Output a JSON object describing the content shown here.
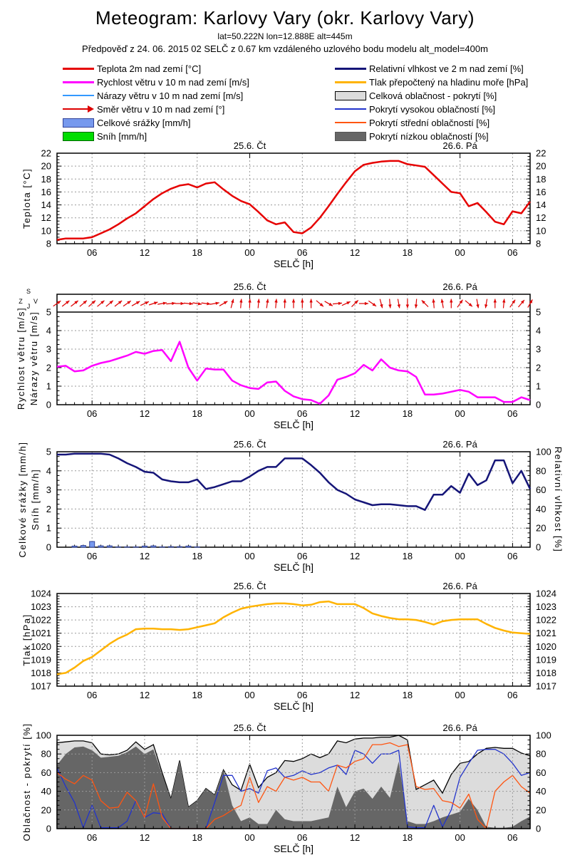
{
  "header": {
    "title": "Meteogram: Karlovy Vary (okr. Karlovy Vary)",
    "subtitle1": "lat=50.222N lon=12.888E alt=445m",
    "subtitle2": "Předpověď z 24. 06. 2015 02 SELČ z 0.67 km vzdáleného uzlového bodu modelu alt_model=400m"
  },
  "legend": {
    "left": [
      {
        "label": "Teplota 2m nad zemí [°C]",
        "type": "line",
        "color": "#e60000",
        "thick": true
      },
      {
        "label": "Rychlost větru v 10 m nad zemí [m/s]",
        "type": "line",
        "color": "#ff00ff",
        "thick": true
      },
      {
        "label": "Nárazy větru v 10 m nad zemí [m/s]",
        "type": "line",
        "color": "#3399ff",
        "thick": false
      },
      {
        "label": "Směr větru v 10 m nad zemí [°]",
        "type": "arrow",
        "color": "#dd0000"
      },
      {
        "label": "Celkové srážky [mm/h]",
        "type": "box",
        "color": "#7799ee",
        "border": "#334499"
      },
      {
        "label": "Sníh [mm/h]",
        "type": "box",
        "color": "#00dd00",
        "border": "#006600"
      }
    ],
    "right": [
      {
        "label": "Relativní vlhkost ve 2 m nad zemí [%]",
        "type": "line",
        "color": "#151578",
        "thick": true
      },
      {
        "label": "Tlak přepočtený na hladinu moře [hPa]",
        "type": "line",
        "color": "#ffb300",
        "thick": true
      },
      {
        "label": "Celková oblačnost - pokrytí [%]",
        "type": "box",
        "color": "#dcdcdc",
        "border": "#000000"
      },
      {
        "label": "Pokrytí vysokou oblačností [%]",
        "type": "line",
        "color": "#2233cc",
        "thick": false
      },
      {
        "label": "Pokrytí střední oblačností [%]",
        "type": "line",
        "color": "#ff5511",
        "thick": false
      },
      {
        "label": "Pokrytí nízkou oblačností [%]",
        "type": "box",
        "color": "#666666",
        "border": "#555555"
      }
    ]
  },
  "axis": {
    "x_label": "SELČ [h]",
    "start_hour": 2,
    "end_hour": 56,
    "x_ticks": [
      {
        "hour": 6,
        "label": "06"
      },
      {
        "hour": 12,
        "label": "12"
      },
      {
        "hour": 18,
        "label": "18"
      },
      {
        "hour": 24,
        "label": "00"
      },
      {
        "hour": 30,
        "label": "06"
      },
      {
        "hour": 36,
        "label": "12"
      },
      {
        "hour": 42,
        "label": "18"
      },
      {
        "hour": 48,
        "label": "00"
      },
      {
        "hour": 54,
        "label": "06"
      }
    ],
    "date_labels": [
      {
        "hour": 24,
        "text": "25.6. Čt"
      },
      {
        "hour": 48,
        "text": "26.6. Pá"
      }
    ]
  },
  "chart_data": [
    {
      "id": "teplota",
      "type": "line",
      "ylabel": "Teplota [°C]",
      "ylim": [
        8,
        22
      ],
      "ytick_step": 2,
      "series": [
        {
          "name": "teplota-2m",
          "color": "#e60000",
          "width": 2.5,
          "values": [
            8.6,
            8.8,
            8.8,
            8.8,
            9.0,
            9.6,
            10.2,
            11.0,
            11.9,
            12.7,
            13.8,
            14.9,
            15.8,
            16.5,
            17.0,
            17.2,
            16.7,
            17.3,
            17.5,
            16.4,
            15.4,
            14.6,
            14.1,
            12.9,
            11.6,
            11.0,
            11.3,
            9.8,
            9.6,
            10.5,
            12.0,
            13.8,
            15.7,
            17.5,
            19.2,
            20.2,
            20.5,
            20.7,
            20.8,
            20.8,
            20.3,
            20.1,
            19.9,
            18.6,
            17.3,
            16.0,
            15.8,
            13.8,
            14.3,
            12.9,
            11.4,
            11.0,
            13.0,
            12.7,
            14.5
          ]
        }
      ]
    },
    {
      "id": "vitr",
      "type": "line-arrows",
      "ylabels": [
        "Rychlost větru [m/s]",
        "Nárazy větru [m/s]"
      ],
      "ylim": [
        0,
        5
      ],
      "ytick_step": 1,
      "compass": {
        "top": "S",
        "bottom": "J",
        "left": "Z",
        "right": "V"
      },
      "arrow_color": "#dd0000",
      "wind_direction_deg": [
        35,
        38,
        38,
        40,
        42,
        40,
        40,
        38,
        35,
        30,
        25,
        18,
        10,
        5,
        0,
        -5,
        -10,
        -8,
        10,
        30,
        75,
        85,
        88,
        85,
        82,
        85,
        88,
        90,
        90,
        90,
        -40,
        -30,
        5,
        25,
        45,
        0,
        -35,
        -75,
        -85,
        -80,
        -90,
        -95,
        135,
        95,
        100,
        90,
        55,
        -40,
        -80,
        -100,
        90,
        85,
        55,
        50,
        60
      ],
      "series": [
        {
          "name": "rychlost-vetru",
          "color": "#ff00ff",
          "width": 2.5,
          "values": [
            2.05,
            2.1,
            1.8,
            1.85,
            2.1,
            2.25,
            2.35,
            2.5,
            2.65,
            2.85,
            2.75,
            2.9,
            2.95,
            2.35,
            3.4,
            2.0,
            1.3,
            1.95,
            1.9,
            1.9,
            1.3,
            1.05,
            0.9,
            0.85,
            1.2,
            1.25,
            0.75,
            0.45,
            0.3,
            0.25,
            0.05,
            0.5,
            1.35,
            1.5,
            1.7,
            2.15,
            1.85,
            2.45,
            2.0,
            1.85,
            1.8,
            1.5,
            0.55,
            0.55,
            0.6,
            0.7,
            0.8,
            0.7,
            0.4,
            0.4,
            0.4,
            0.15,
            0.15,
            0.4,
            0.25
          ]
        }
      ]
    },
    {
      "id": "srazky",
      "type": "bars-line",
      "ylabels": [
        "Celkové srážky [mm/h]",
        "Sníh [mm/h]"
      ],
      "ylim": [
        0,
        5
      ],
      "ytick_step": 1,
      "y2label": "Relativní vlhkost [%]",
      "y2lim": [
        0,
        100
      ],
      "y2tick_step": 20,
      "bars": {
        "name": "celkove-srazky",
        "color": "#7799ee",
        "border": "#334499",
        "values": [
          0,
          0,
          0.06,
          0.09,
          0.3,
          0.07,
          0.07,
          0.02,
          0.02,
          0.02,
          0.06,
          0.07,
          0.02,
          0.03,
          0.03,
          0.06,
          0.02,
          0,
          0,
          0,
          0,
          0,
          0,
          0,
          0,
          0,
          0,
          0,
          0,
          0,
          0,
          0,
          0,
          0,
          0,
          0,
          0,
          0,
          0,
          0,
          0,
          0,
          0,
          0,
          0,
          0,
          0,
          0,
          0,
          0,
          0,
          0,
          0,
          0,
          0
        ]
      },
      "series": [
        {
          "name": "relativni-vlhkost",
          "color": "#151578",
          "width": 2.5,
          "axis": "y2",
          "values": [
            97,
            97,
            98,
            98,
            98,
            98,
            97,
            93,
            88,
            84,
            79,
            78,
            71,
            69,
            68,
            68,
            71,
            61,
            63,
            66,
            69,
            69,
            74,
            80,
            84,
            84,
            93,
            93,
            93,
            86,
            78,
            68,
            60,
            56,
            50,
            47,
            44,
            45,
            45,
            44,
            43,
            43,
            39,
            55,
            55,
            64,
            57,
            77,
            65,
            70,
            91,
            91,
            67,
            80,
            61
          ]
        }
      ]
    },
    {
      "id": "tlak",
      "type": "line",
      "ylabel": "Tlak [hPa]",
      "ylim": [
        1017,
        1024
      ],
      "ytick_step": 1,
      "series": [
        {
          "name": "tlak-hladina-more",
          "color": "#ffb300",
          "width": 2.5,
          "values": [
            1017.9,
            1018.0,
            1018.4,
            1018.9,
            1019.2,
            1019.7,
            1020.2,
            1020.6,
            1020.9,
            1021.3,
            1021.35,
            1021.35,
            1021.3,
            1021.3,
            1021.25,
            1021.3,
            1021.45,
            1021.6,
            1021.75,
            1022.2,
            1022.55,
            1022.85,
            1023.0,
            1023.1,
            1023.2,
            1023.25,
            1023.25,
            1023.2,
            1023.1,
            1023.15,
            1023.35,
            1023.4,
            1023.2,
            1023.2,
            1023.2,
            1022.9,
            1022.5,
            1022.3,
            1022.15,
            1022.05,
            1022.05,
            1022.0,
            1021.85,
            1021.65,
            1021.9,
            1022.0,
            1022.05,
            1022.05,
            1022.05,
            1021.7,
            1021.4,
            1021.2,
            1021.05,
            1021.0,
            1020.95
          ]
        }
      ]
    },
    {
      "id": "oblacnost",
      "type": "areas-lines",
      "ylabel": "Oblačnost - pokrytí [%]",
      "ylim": [
        0,
        100
      ],
      "ytick_step": 20,
      "areas": [
        {
          "name": "celkova-oblacnost",
          "fill": "#dcdcdc",
          "stroke": "#000000",
          "values": [
            92,
            93,
            94,
            94,
            92,
            80,
            79,
            80,
            84,
            93,
            85,
            90,
            60,
            32,
            73,
            23,
            30,
            43,
            36,
            63,
            47,
            41,
            69,
            44,
            55,
            60,
            73,
            72,
            75,
            80,
            76,
            80,
            94,
            92,
            96,
            97,
            97,
            98,
            98,
            100,
            95,
            42,
            47,
            52,
            38,
            58,
            70,
            72,
            80,
            86,
            87,
            86,
            86,
            81,
            78
          ]
        },
        {
          "name": "nizka-oblacnost",
          "fill": "#666666",
          "values": [
            68,
            80,
            87,
            88,
            84,
            76,
            77,
            78,
            82,
            88,
            80,
            85,
            58,
            32,
            73,
            23,
            30,
            43,
            36,
            63,
            25,
            8,
            12,
            5,
            5,
            20,
            10,
            8,
            8,
            8,
            10,
            12,
            45,
            23,
            40,
            43,
            32,
            45,
            33,
            72,
            8,
            5,
            5,
            8,
            12,
            15,
            18,
            32,
            20,
            2,
            1,
            1,
            2,
            8,
            13
          ]
        }
      ],
      "series": [
        {
          "name": "vysoka-oblacnost",
          "color": "#2233cc",
          "width": 1.3,
          "values": [
            65,
            45,
            28,
            1,
            25,
            1,
            1,
            1,
            8,
            30,
            12,
            17,
            16,
            0,
            0,
            0,
            0,
            0,
            28,
            57,
            57,
            40,
            43,
            38,
            62,
            65,
            55,
            57,
            62,
            58,
            60,
            65,
            68,
            58,
            84,
            80,
            70,
            80,
            80,
            84,
            2,
            1,
            1,
            25,
            2,
            20,
            55,
            70,
            84,
            85,
            85,
            80,
            70,
            57,
            60
          ]
        },
        {
          "name": "stredni-oblacnost",
          "color": "#ff5511",
          "width": 1.3,
          "values": [
            60,
            53,
            48,
            57,
            52,
            30,
            22,
            23,
            39,
            30,
            12,
            48,
            12,
            0,
            0,
            0,
            0,
            0,
            10,
            14,
            20,
            25,
            55,
            28,
            45,
            40,
            55,
            52,
            55,
            50,
            50,
            40,
            68,
            65,
            72,
            75,
            90,
            90,
            92,
            88,
            90,
            45,
            42,
            43,
            30,
            28,
            22,
            37,
            10,
            0,
            40,
            50,
            57,
            45,
            38
          ]
        }
      ]
    }
  ]
}
